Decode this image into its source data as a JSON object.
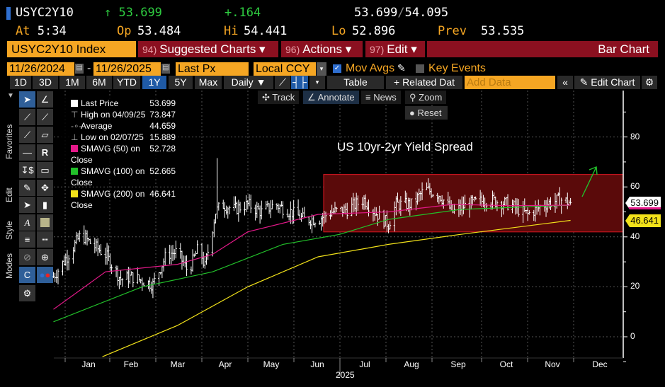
{
  "header": {
    "ticker": "USYC2Y10",
    "last": "53.699",
    "arrow": "↑",
    "change": "+.164",
    "bid_ask": "53.699",
    "ask": "54.095",
    "at_label": "At",
    "at": "5:34",
    "op_label": "Op",
    "op": "53.484",
    "hi_label": "Hi",
    "hi": "54.441",
    "lo_label": "Lo",
    "lo": "52.896",
    "prev_label": "Prev",
    "prev": "53.535"
  },
  "menubar": {
    "security": "USYC2Y10 Index",
    "suggested_num": "94)",
    "suggested": "Suggested Charts ▾",
    "actions_num": "96)",
    "actions": "Actions ▾",
    "edit_num": "97)",
    "edit": "Edit ▾",
    "chart_type": "Bar Chart"
  },
  "settings": {
    "start_date": "11/26/2024",
    "dash": "-",
    "end_date": "11/26/2025",
    "field": "Last Px",
    "currency": "Local CCY",
    "mov_avgs": "Mov Avgs",
    "key_events": "Key Events"
  },
  "toolbar": {
    "periods": [
      "1D",
      "3D",
      "1M",
      "6M",
      "YTD",
      "1Y",
      "5Y",
      "Max"
    ],
    "selected": "1Y",
    "frequency": "Daily ▼",
    "table": "Table",
    "related": "+ Related Dat",
    "add_data_placeholder": "Add Data",
    "collapse": "«",
    "edit_chart": "Edit Chart"
  },
  "chart_tools": {
    "track": "Track",
    "annotate": "Annotate",
    "news": "News",
    "zoom": "Zoom",
    "reset": "Reset"
  },
  "side_tabs": {
    "favorites": "Favorites",
    "edit": "Edit",
    "style": "Style",
    "modes": "Modes"
  },
  "legend": [
    {
      "label": "Last Price",
      "value": "53.699",
      "color": "#ffffff"
    },
    {
      "label": "High on 04/09/25",
      "value": "73.847",
      "color": ""
    },
    {
      "label": "Average",
      "value": "44.659",
      "color": ""
    },
    {
      "label": "Low on 02/07/25",
      "value": "15.889",
      "color": ""
    },
    {
      "label": "SMAVG (50)  on Close",
      "value": "52.728",
      "color": "#e5198a"
    },
    {
      "label": "SMAVG (100)  on Close",
      "value": "52.665",
      "color": "#22c02a"
    },
    {
      "label": "SMAVG (200)  on Close",
      "value": "46.641",
      "color": "#f2e21a"
    }
  ],
  "price_tags": {
    "last": "53.699",
    "sma200": "46.641"
  },
  "chart_data": {
    "type": "bar",
    "title": "US 10yr-2yr Yield Spread",
    "x_unit": "days since 2024-12-01",
    "xlabel": "2025",
    "month_ticks": [
      "Jan",
      "Feb",
      "Mar",
      "Apr",
      "May",
      "Jun",
      "Jul",
      "Aug",
      "Sep",
      "Oct",
      "Nov",
      "Dec"
    ],
    "y_ticks": [
      0,
      20,
      40,
      60,
      80
    ],
    "ylim": [
      -8,
      98
    ],
    "price": [
      [
        22,
        24
      ],
      [
        33,
        34
      ],
      [
        40,
        41
      ],
      [
        47,
        37
      ],
      [
        56,
        33
      ],
      [
        66,
        23
      ],
      [
        73,
        24
      ],
      [
        87,
        21
      ],
      [
        96,
        33
      ],
      [
        103,
        34
      ],
      [
        110,
        26
      ],
      [
        117,
        36
      ],
      [
        121,
        28
      ],
      [
        128,
        50
      ],
      [
        132,
        53
      ],
      [
        140,
        51
      ],
      [
        149,
        53
      ],
      [
        158,
        50
      ],
      [
        167,
        53
      ],
      [
        177,
        50
      ],
      [
        186,
        47
      ],
      [
        195,
        47
      ],
      [
        204,
        50
      ],
      [
        214,
        51
      ],
      [
        225,
        55
      ],
      [
        232,
        50
      ],
      [
        241,
        45
      ],
      [
        246,
        53
      ],
      [
        256,
        53
      ],
      [
        265,
        59
      ],
      [
        274,
        57
      ],
      [
        283,
        50
      ],
      [
        293,
        53
      ],
      [
        306,
        55
      ],
      [
        320,
        53
      ],
      [
        332,
        49
      ],
      [
        343,
        53
      ],
      [
        353,
        55
      ],
      [
        360,
        53.7
      ]
    ],
    "sma50": [
      [
        22,
        11
      ],
      [
        56,
        26
      ],
      [
        103,
        29
      ],
      [
        126,
        33
      ],
      [
        149,
        42
      ],
      [
        195,
        49
      ],
      [
        241,
        50
      ],
      [
        283,
        53
      ],
      [
        320,
        52.5
      ],
      [
        360,
        52.7
      ]
    ],
    "sma100": [
      [
        22,
        6
      ],
      [
        80,
        20
      ],
      [
        126,
        26
      ],
      [
        172,
        37
      ],
      [
        209,
        41
      ],
      [
        241,
        47
      ],
      [
        288,
        51
      ],
      [
        360,
        52.7
      ]
    ],
    "sma200": [
      [
        54,
        -8
      ],
      [
        103,
        4.5
      ],
      [
        149,
        20
      ],
      [
        195,
        32
      ],
      [
        241,
        37
      ],
      [
        288,
        41
      ],
      [
        360,
        46.6
      ]
    ],
    "range_box": [
      42,
      65
    ],
    "colors": {
      "sma50": "#e5198a",
      "sma100": "#22c02a",
      "sma200": "#f2e21a",
      "box": "#5a0a0a",
      "box_edge": "#c0141e",
      "arrow": "#22c02a"
    }
  }
}
